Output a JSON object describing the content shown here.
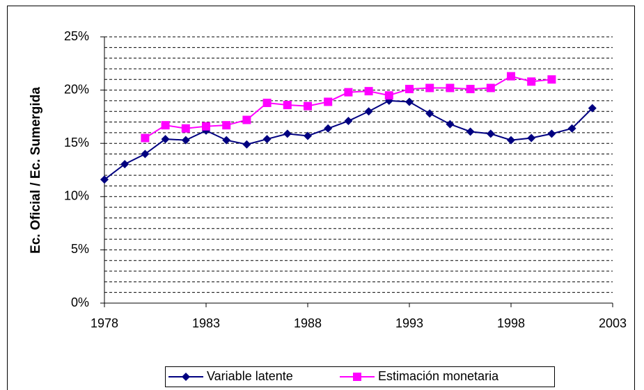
{
  "chart_data": {
    "type": "line",
    "y_label": "Ec. Oficial / Ec. Sumergida",
    "x": [
      1978,
      1979,
      1980,
      1981,
      1982,
      1983,
      1984,
      1985,
      1986,
      1987,
      1988,
      1989,
      1990,
      1991,
      1992,
      1993,
      1994,
      1995,
      1996,
      1997,
      1998,
      1999,
      2000,
      2001,
      2002
    ],
    "series": [
      {
        "name": "Variable latente",
        "color": "#000080",
        "marker": "diamond",
        "values": [
          11.6,
          13.05,
          14.0,
          15.4,
          15.3,
          16.2,
          15.3,
          14.9,
          15.4,
          15.9,
          15.7,
          16.4,
          17.1,
          18.0,
          19.0,
          18.9,
          17.8,
          16.8,
          16.1,
          15.9,
          15.3,
          15.5,
          15.9,
          16.4,
          18.3
        ]
      },
      {
        "name": "Estimación monetaria",
        "color": "#ff00ff",
        "marker": "square",
        "values": [
          null,
          null,
          15.5,
          16.7,
          16.4,
          16.6,
          16.7,
          17.2,
          18.8,
          18.6,
          18.5,
          18.9,
          19.8,
          19.9,
          19.5,
          20.1,
          20.2,
          20.2,
          20.1,
          20.2,
          21.3,
          20.8,
          21.0,
          null,
          null
        ]
      }
    ],
    "xlim": [
      1978,
      2003
    ],
    "xticks": [
      1978,
      1983,
      1988,
      1993,
      1998,
      2003
    ],
    "ylim": [
      0,
      25
    ],
    "yticks": [
      {
        "value": 0,
        "label": "0%"
      },
      {
        "value": 5,
        "label": "5%"
      },
      {
        "value": 10,
        "label": "10%"
      },
      {
        "value": 15,
        "label": "15%"
      },
      {
        "value": 20,
        "label": "20%"
      },
      {
        "value": 25,
        "label": "25%"
      }
    ],
    "minor_yticks": [
      1,
      2,
      3,
      4,
      6,
      7,
      8,
      9,
      11,
      12,
      13,
      14,
      16,
      17,
      18,
      19,
      21,
      22,
      23,
      24
    ],
    "grid": true,
    "legend": "bottom"
  }
}
